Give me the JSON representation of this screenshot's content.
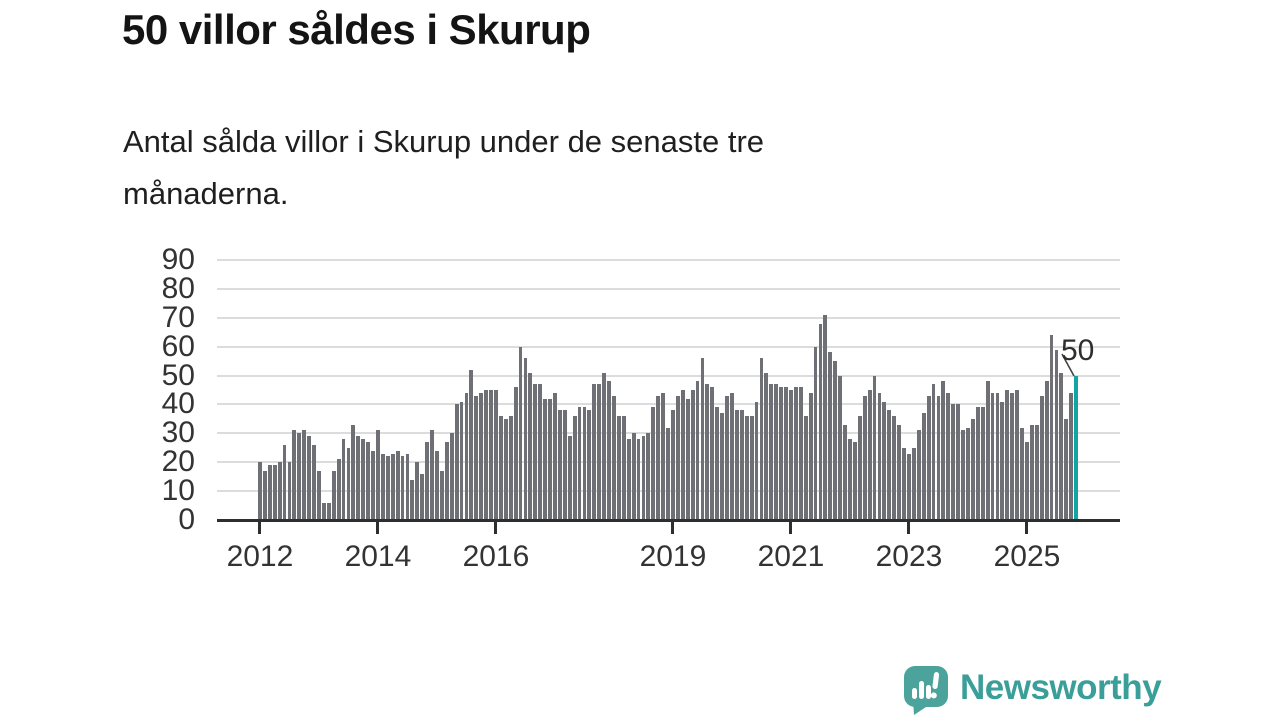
{
  "header": {
    "title": "50 villor såldes i Skurup",
    "subtitle": "Antal sålda villor i Skurup under de senaste tre månaderna.",
    "subtitle_lines": [
      "Antal sålda villor i Skurup under de senaste tre",
      "månaderna."
    ]
  },
  "chart_data": {
    "type": "bar",
    "title": "50 villor såldes i Skurup",
    "description": "Antal sålda villor i Skurup under de senaste tre månaderna.",
    "x_unit": "monthly bars, Jan 2012 to Nov 2025",
    "values": [
      20,
      17,
      19,
      19,
      20,
      26,
      20,
      31,
      30,
      31,
      29,
      26,
      17,
      6,
      6,
      17,
      21,
      28,
      25,
      33,
      29,
      28,
      27,
      24,
      31,
      23,
      22,
      23,
      24,
      22,
      23,
      14,
      20,
      16,
      27,
      31,
      24,
      17,
      27,
      30,
      40,
      41,
      44,
      52,
      43,
      44,
      45,
      45,
      45,
      36,
      35,
      36,
      46,
      60,
      56,
      51,
      47,
      47,
      42,
      42,
      44,
      38,
      38,
      29,
      36,
      39,
      39,
      38,
      47,
      47,
      51,
      48,
      43,
      36,
      36,
      28,
      30,
      28,
      29,
      30,
      39,
      43,
      44,
      32,
      38,
      43,
      45,
      42,
      45,
      48,
      56,
      47,
      46,
      39,
      37,
      43,
      44,
      38,
      38,
      36,
      36,
      41,
      56,
      51,
      47,
      47,
      46,
      46,
      45,
      46,
      46,
      36,
      44,
      60,
      68,
      71,
      58,
      55,
      50,
      33,
      28,
      27,
      36,
      43,
      45,
      50,
      44,
      41,
      38,
      36,
      33,
      25,
      23,
      25,
      31,
      37,
      43,
      47,
      43,
      48,
      44,
      40,
      40,
      31,
      32,
      35,
      39,
      39,
      48,
      44,
      44,
      41,
      45,
      44,
      45,
      32,
      27,
      33,
      33,
      43,
      48,
      64,
      59,
      51,
      35,
      44,
      50
    ],
    "x_ticks": [
      "2012",
      "2014",
      "2016",
      "2019",
      "2021",
      "2023",
      "2025"
    ],
    "y_ticks": [
      0,
      10,
      20,
      30,
      40,
      50,
      60,
      70,
      80,
      90
    ],
    "ylim": [
      0,
      90
    ],
    "grid": true,
    "legend": false,
    "bar_color": "#6F7076",
    "highlight_color": "#12A5A4",
    "highlight_index": 166,
    "last_value": 50,
    "annotation": {
      "label": "50",
      "target": "last-bar"
    }
  },
  "footer": {
    "brand": "Newsworthy",
    "brand_color": "#3A9E99",
    "bubble_color": "#4CA39C"
  }
}
